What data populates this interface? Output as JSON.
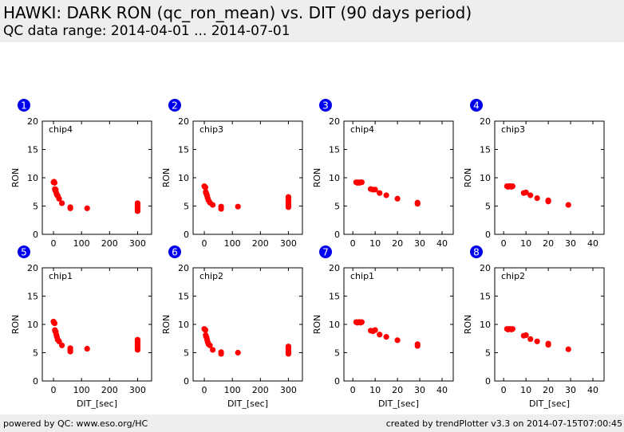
{
  "header": {
    "title": "HAWKI: DARK RON (qc_ron_mean) vs. DIT (90 days period)",
    "subtitle": "QC data range: 2014-04-01 ... 2014-07-01"
  },
  "footer": {
    "left": "powered by QC: www.eso.org/HC",
    "right": "created by trendPlotter v3.3 on 2014-07-15T07:00:45"
  },
  "colors": {
    "points": "#ff0000",
    "badge": "#0000ee",
    "header_bg": "#eeeeee"
  },
  "chart_data": [
    {
      "type": "scatter",
      "number": "1",
      "label": "chip4",
      "xlabel": "",
      "ylabel": "RON",
      "xlim": [
        -40,
        350
      ],
      "ylim": [
        0,
        20
      ],
      "xticks": [
        0,
        100,
        200,
        300
      ],
      "yticks": [
        0,
        5,
        10,
        15,
        20
      ],
      "x": [
        0,
        2,
        4,
        5,
        6,
        8,
        10,
        12,
        15,
        20,
        30,
        60,
        60,
        120,
        300,
        300,
        300,
        300,
        300,
        300,
        300,
        300
      ],
      "y": [
        9.2,
        9.3,
        9.1,
        8.0,
        7.8,
        7.9,
        7.3,
        7.0,
        6.8,
        6.3,
        5.5,
        4.8,
        4.6,
        4.6,
        5.5,
        5.3,
        5.1,
        4.9,
        4.7,
        4.5,
        4.3,
        4.1
      ]
    },
    {
      "type": "scatter",
      "number": "2",
      "label": "chip3",
      "xlabel": "",
      "ylabel": "RON",
      "xlim": [
        -40,
        350
      ],
      "ylim": [
        0,
        20
      ],
      "xticks": [
        0,
        100,
        200,
        300
      ],
      "yticks": [
        0,
        5,
        10,
        15,
        20
      ],
      "x": [
        0,
        2,
        4,
        5,
        6,
        8,
        10,
        12,
        15,
        20,
        30,
        60,
        60,
        120,
        300,
        300,
        300,
        300,
        300,
        300,
        300,
        300
      ],
      "y": [
        8.5,
        8.4,
        8.3,
        7.5,
        7.3,
        7.1,
        6.8,
        6.4,
        6.0,
        5.6,
        5.2,
        4.9,
        4.5,
        4.9,
        6.6,
        6.3,
        6.0,
        5.7,
        5.4,
        5.2,
        5.0,
        4.8
      ]
    },
    {
      "type": "scatter",
      "number": "3",
      "label": "chip4",
      "xlabel": "",
      "ylabel": "RON",
      "xlim": [
        -4,
        45
      ],
      "ylim": [
        0,
        20
      ],
      "xticks": [
        0,
        10,
        20,
        30,
        40
      ],
      "yticks": [
        0,
        5,
        10,
        15,
        20
      ],
      "x": [
        1.5,
        2,
        2.5,
        3,
        3.5,
        4,
        8,
        9,
        10,
        12,
        15,
        20,
        29,
        29
      ],
      "y": [
        9.2,
        9.1,
        9.2,
        9.1,
        9.2,
        9.2,
        8.0,
        7.9,
        7.9,
        7.3,
        6.9,
        6.3,
        5.6,
        5.4
      ]
    },
    {
      "type": "scatter",
      "number": "4",
      "label": "chip3",
      "xlabel": "",
      "ylabel": "RON",
      "xlim": [
        -4,
        45
      ],
      "ylim": [
        0,
        20
      ],
      "xticks": [
        0,
        10,
        20,
        30,
        40
      ],
      "yticks": [
        0,
        5,
        10,
        15,
        20
      ],
      "x": [
        1.5,
        2,
        2.5,
        3,
        3.5,
        4,
        9,
        10,
        12,
        15,
        20,
        20,
        29
      ],
      "y": [
        8.5,
        8.4,
        8.5,
        8.5,
        8.4,
        8.5,
        7.3,
        7.4,
        6.9,
        6.4,
        6.0,
        5.8,
        5.2
      ]
    },
    {
      "type": "scatter",
      "number": "5",
      "label": "chip1",
      "xlabel": "DIT_[sec]",
      "ylabel": "RON",
      "xlim": [
        -40,
        350
      ],
      "ylim": [
        0,
        20
      ],
      "xticks": [
        0,
        100,
        200,
        300
      ],
      "yticks": [
        0,
        5,
        10,
        15,
        20
      ],
      "x": [
        0,
        2,
        4,
        5,
        6,
        8,
        10,
        12,
        15,
        20,
        30,
        60,
        60,
        60,
        120,
        300,
        300,
        300,
        300,
        300,
        300,
        300,
        300,
        300
      ],
      "y": [
        10.5,
        10.3,
        10.2,
        9.0,
        8.8,
        8.7,
        8.2,
        7.8,
        7.3,
        7.0,
        6.3,
        5.8,
        5.5,
        5.2,
        5.7,
        7.3,
        7.0,
        6.8,
        6.5,
        6.3,
        6.1,
        5.9,
        5.7,
        5.5
      ]
    },
    {
      "type": "scatter",
      "number": "6",
      "label": "chip2",
      "xlabel": "DIT_[sec]",
      "ylabel": "RON",
      "xlim": [
        -40,
        350
      ],
      "ylim": [
        0,
        20
      ],
      "xticks": [
        0,
        100,
        200,
        300
      ],
      "yticks": [
        0,
        5,
        10,
        15,
        20
      ],
      "x": [
        0,
        2,
        4,
        5,
        6,
        8,
        10,
        12,
        15,
        20,
        30,
        60,
        60,
        120,
        300,
        300,
        300,
        300,
        300,
        300,
        300,
        300
      ],
      "y": [
        9.2,
        9.1,
        9.0,
        8.1,
        7.9,
        7.7,
        7.3,
        6.9,
        6.5,
        6.3,
        5.5,
        5.1,
        4.8,
        5.0,
        6.1,
        5.9,
        5.7,
        5.5,
        5.3,
        5.1,
        4.9,
        4.8
      ]
    },
    {
      "type": "scatter",
      "number": "7",
      "label": "chip1",
      "xlabel": "DIT_[sec]",
      "ylabel": "RON",
      "xlim": [
        -4,
        45
      ],
      "ylim": [
        0,
        20
      ],
      "xticks": [
        0,
        10,
        20,
        30,
        40
      ],
      "yticks": [
        0,
        5,
        10,
        15,
        20
      ],
      "x": [
        1.5,
        2,
        2.5,
        3,
        3.5,
        4,
        8,
        9,
        10,
        12,
        15,
        20,
        29,
        29
      ],
      "y": [
        10.4,
        10.3,
        10.4,
        10.4,
        10.3,
        10.4,
        8.9,
        8.8,
        9.0,
        8.2,
        7.8,
        7.2,
        6.5,
        6.2
      ]
    },
    {
      "type": "scatter",
      "number": "8",
      "label": "chip2",
      "xlabel": "DIT_[sec]",
      "ylabel": "RON",
      "xlim": [
        -4,
        45
      ],
      "ylim": [
        0,
        20
      ],
      "xticks": [
        0,
        10,
        20,
        30,
        40
      ],
      "yticks": [
        0,
        5,
        10,
        15,
        20
      ],
      "x": [
        1.5,
        2,
        2.5,
        3,
        3.5,
        4,
        9,
        10,
        12,
        15,
        20,
        20,
        29
      ],
      "y": [
        9.2,
        9.1,
        9.2,
        9.2,
        9.1,
        9.2,
        8.0,
        8.1,
        7.4,
        7.0,
        6.6,
        6.4,
        5.6
      ]
    }
  ]
}
